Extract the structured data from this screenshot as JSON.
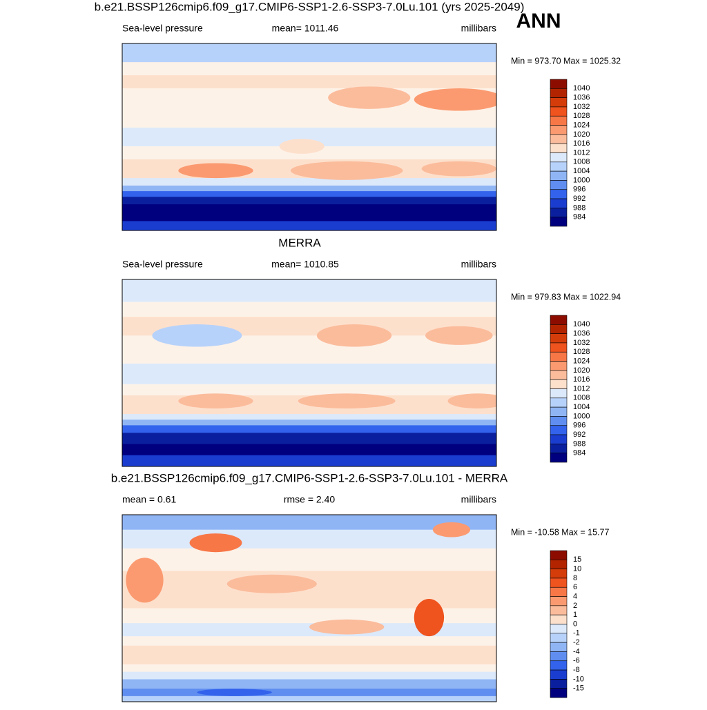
{
  "header": {
    "label": "ANN"
  },
  "panels": [
    {
      "title": "b.e21.BSSP126cmip6.f09_g17.CMIP6-SSP1-2.6-SSP3-7.0Lu.101 (yrs 2025-2049)",
      "left": "Sea-level pressure",
      "center": "mean= 1011.46",
      "right": "millibars",
      "range": "Min = 973.70 Max = 1025.32",
      "colorbar": [
        "1040",
        "1036",
        "1032",
        "1028",
        "1024",
        "1020",
        "1016",
        "1012",
        "1008",
        "1004",
        "1000",
        "996",
        "992",
        "988",
        "984"
      ]
    },
    {
      "title": "MERRA",
      "left": "Sea-level pressure",
      "center": "mean= 1010.85",
      "right": "millibars",
      "range": "Min = 979.83 Max = 1022.94",
      "colorbar": [
        "1040",
        "1036",
        "1032",
        "1028",
        "1024",
        "1020",
        "1016",
        "1012",
        "1008",
        "1004",
        "1000",
        "996",
        "992",
        "988",
        "984"
      ]
    },
    {
      "title": "b.e21.BSSP126cmip6.f09_g17.CMIP6-SSP1-2.6-SSP3-7.0Lu.101 - MERRA",
      "left": "mean =   0.61",
      "center": "rmse =   2.40",
      "right": "millibars",
      "range": "Min = -10.58 Max =  15.77",
      "colorbar": [
        "15",
        "10",
        "8",
        "6",
        "4",
        "2",
        "1",
        "0",
        "-1",
        "-2",
        "-4",
        "-6",
        "-8",
        "-10",
        "-15"
      ]
    }
  ]
}
